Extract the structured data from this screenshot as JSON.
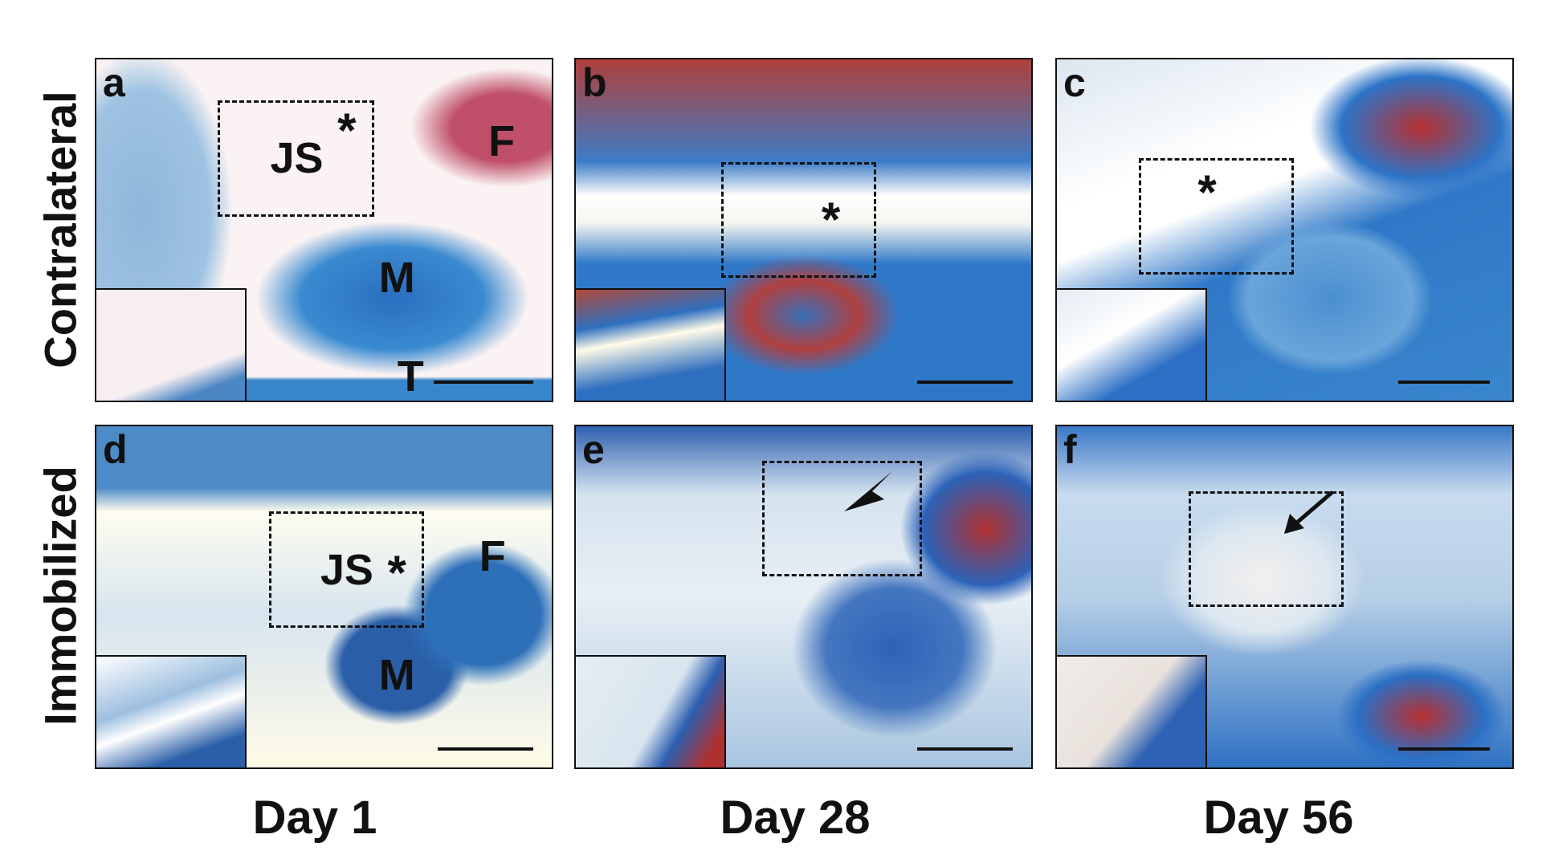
{
  "rows": [
    "Contralateral",
    "Immobilized"
  ],
  "columns": [
    "Day 1",
    "Day 28",
    "Day 56"
  ],
  "panels": {
    "a": {
      "letter": "a",
      "js": "JS",
      "star": "*",
      "f": "F",
      "m": "M",
      "t": "T"
    },
    "b": {
      "letter": "b",
      "star": "*"
    },
    "c": {
      "letter": "c",
      "star": "*"
    },
    "d": {
      "letter": "d",
      "js": "JS",
      "star": "*",
      "f": "F",
      "m": "M"
    },
    "e": {
      "letter": "e",
      "marker": "arrowhead"
    },
    "f": {
      "letter": "f",
      "marker": "arrow"
    }
  },
  "colors": {
    "stain_blue": "#2f78c8",
    "stain_red": "#b83030",
    "background": "#ffffff"
  }
}
